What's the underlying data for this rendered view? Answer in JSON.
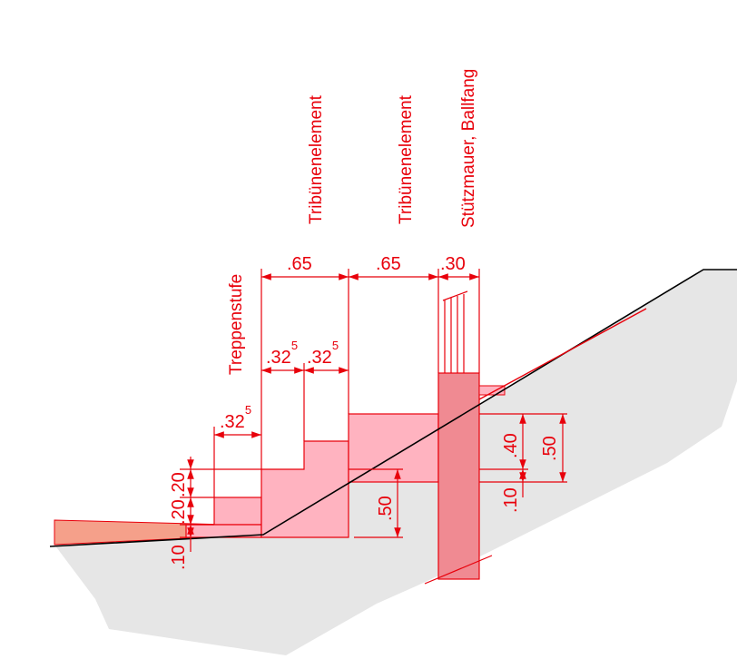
{
  "colors": {
    "annotation": "#e8000b",
    "element_fill": "#ffb3c0",
    "wall_fill": "#f08a92",
    "ground_fill": "#e6e6e6",
    "terrain_line": "#000000",
    "path_fill": "#f5a08a"
  },
  "labels": {
    "treppenstufe": "Treppenstufe",
    "tribuene_1": "Tribünenelement",
    "tribuene_2": "Tribünenelement",
    "stuetzmauer": "Stützmauer, Ballfang"
  },
  "dimensions": {
    "top_065_a": ".65",
    "top_065_b": ".65",
    "top_030": ".30",
    "mid_0325_a": ".32",
    "mid_0325_a_sup": "5",
    "mid_0325_b": ".32",
    "mid_0325_b_sup": "5",
    "low_0325": ".32",
    "low_0325_sup": "5",
    "left_020_top": ".20",
    "left_020_bottom": ".20",
    "left_010": ".10",
    "center_050": ".50",
    "right_040": ".40",
    "right_050": ".50",
    "right_010": ".10"
  }
}
